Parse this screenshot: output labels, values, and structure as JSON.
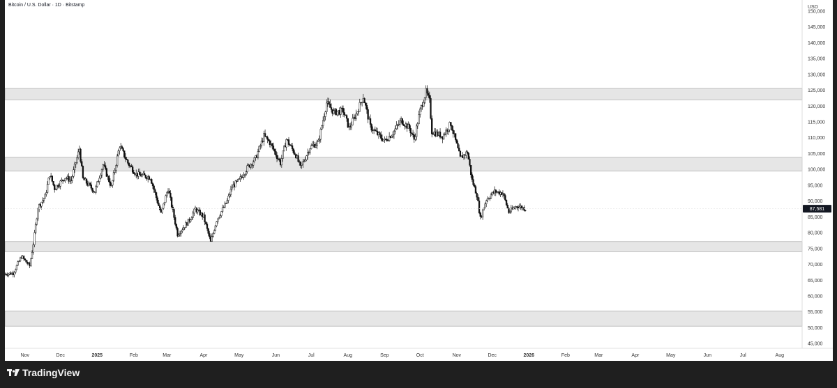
{
  "legend": {
    "symbol_line": "Bitcoin / U.S. Dollar · 1D · Bitstamp"
  },
  "branding": {
    "name": "TradingView",
    "logo_icon": "tradingview-logo-icon"
  },
  "price_axis": {
    "currency": "USD"
  },
  "chart_data": {
    "type": "candlestick",
    "title": "Bitcoin / U.S. Dollar · 1D · Bitstamp",
    "ylim": [
      43500,
      153500
    ],
    "y_ticks": [
      45000,
      50000,
      55000,
      60000,
      65000,
      70000,
      75000,
      80000,
      85000,
      90000,
      95000,
      100000,
      105000,
      110000,
      115000,
      120000,
      125000,
      130000,
      135000,
      140000,
      145000,
      150000
    ],
    "y_tick_labels": [
      "45,000",
      "50,000",
      "55,000",
      "60,000",
      "65,000",
      "70,000",
      "75,000",
      "80,000",
      "85,000",
      "90,000",
      "95,000",
      "100,000",
      "105,000",
      "110,000",
      "115,000",
      "120,000",
      "125,000",
      "130,000",
      "135,000",
      "140,000",
      "145,000",
      "150,000"
    ],
    "x_start_date": "2024-10-15",
    "x_end_date": "2026-08-20",
    "x_ticks": [
      {
        "label": "Nov",
        "date": "2024-11-01"
      },
      {
        "label": "Dec",
        "date": "2024-12-01"
      },
      {
        "label": "2025",
        "date": "2025-01-01",
        "bold": true
      },
      {
        "label": "Feb",
        "date": "2025-02-01"
      },
      {
        "label": "Mar",
        "date": "2025-03-01"
      },
      {
        "label": "Apr",
        "date": "2025-04-01"
      },
      {
        "label": "May",
        "date": "2025-05-01"
      },
      {
        "label": "Jun",
        "date": "2025-06-01"
      },
      {
        "label": "Jul",
        "date": "2025-07-01"
      },
      {
        "label": "Aug",
        "date": "2025-08-01"
      },
      {
        "label": "Sep",
        "date": "2025-09-01"
      },
      {
        "label": "Oct",
        "date": "2025-10-01"
      },
      {
        "label": "Nov",
        "date": "2025-11-01"
      },
      {
        "label": "Dec",
        "date": "2025-12-01"
      },
      {
        "label": "2026",
        "date": "2026-01-01",
        "bold": true
      },
      {
        "label": "Feb",
        "date": "2026-02-01"
      },
      {
        "label": "Mar",
        "date": "2026-03-01"
      },
      {
        "label": "Apr",
        "date": "2026-04-01"
      },
      {
        "label": "May",
        "date": "2026-05-01"
      },
      {
        "label": "Jun",
        "date": "2026-06-01"
      },
      {
        "label": "Jul",
        "date": "2026-07-01"
      },
      {
        "label": "Aug",
        "date": "2026-08-01"
      }
    ],
    "zones": [
      {
        "low": 122000,
        "high": 125600
      },
      {
        "low": 99500,
        "high": 103800
      },
      {
        "low": 74000,
        "high": 77200
      },
      {
        "low": 50500,
        "high": 55300
      }
    ],
    "close_series": [
      {
        "date": "2024-10-15",
        "price": 67000
      },
      {
        "date": "2024-10-22",
        "price": 67200
      },
      {
        "date": "2024-10-29",
        "price": 72500
      },
      {
        "date": "2024-11-05",
        "price": 69500
      },
      {
        "date": "2024-11-08",
        "price": 76500
      },
      {
        "date": "2024-11-12",
        "price": 88000
      },
      {
        "date": "2024-11-18",
        "price": 91500
      },
      {
        "date": "2024-11-22",
        "price": 98500
      },
      {
        "date": "2024-11-26",
        "price": 94000
      },
      {
        "date": "2024-12-05",
        "price": 97500
      },
      {
        "date": "2024-12-10",
        "price": 96500
      },
      {
        "date": "2024-12-17",
        "price": 106500
      },
      {
        "date": "2024-12-20",
        "price": 97000
      },
      {
        "date": "2024-12-30",
        "price": 93000
      },
      {
        "date": "2025-01-06",
        "price": 101500
      },
      {
        "date": "2025-01-13",
        "price": 94500
      },
      {
        "date": "2025-01-20",
        "price": 107500
      },
      {
        "date": "2025-01-27",
        "price": 102000
      },
      {
        "date": "2025-02-03",
        "price": 98500
      },
      {
        "date": "2025-02-15",
        "price": 97500
      },
      {
        "date": "2025-02-24",
        "price": 86000
      },
      {
        "date": "2025-03-02",
        "price": 94000
      },
      {
        "date": "2025-03-10",
        "price": 79500
      },
      {
        "date": "2025-03-20",
        "price": 84000
      },
      {
        "date": "2025-03-25",
        "price": 87500
      },
      {
        "date": "2025-04-01",
        "price": 85000
      },
      {
        "date": "2025-04-07",
        "price": 77000
      },
      {
        "date": "2025-04-12",
        "price": 84000
      },
      {
        "date": "2025-04-21",
        "price": 90000
      },
      {
        "date": "2025-04-25",
        "price": 94500
      },
      {
        "date": "2025-05-01",
        "price": 96500
      },
      {
        "date": "2025-05-08",
        "price": 100500
      },
      {
        "date": "2025-05-15",
        "price": 103500
      },
      {
        "date": "2025-05-22",
        "price": 110500
      },
      {
        "date": "2025-05-27",
        "price": 108500
      },
      {
        "date": "2025-06-05",
        "price": 102000
      },
      {
        "date": "2025-06-10",
        "price": 109500
      },
      {
        "date": "2025-06-18",
        "price": 104500
      },
      {
        "date": "2025-06-22",
        "price": 100500
      },
      {
        "date": "2025-06-30",
        "price": 107000
      },
      {
        "date": "2025-07-07",
        "price": 108500
      },
      {
        "date": "2025-07-14",
        "price": 121000
      },
      {
        "date": "2025-07-20",
        "price": 118000
      },
      {
        "date": "2025-07-28",
        "price": 118500
      },
      {
        "date": "2025-08-02",
        "price": 113000
      },
      {
        "date": "2025-08-08",
        "price": 117500
      },
      {
        "date": "2025-08-14",
        "price": 123000
      },
      {
        "date": "2025-08-20",
        "price": 113500
      },
      {
        "date": "2025-08-25",
        "price": 111500
      },
      {
        "date": "2025-09-01",
        "price": 109000
      },
      {
        "date": "2025-09-08",
        "price": 111500
      },
      {
        "date": "2025-09-15",
        "price": 115500
      },
      {
        "date": "2025-09-22",
        "price": 113000
      },
      {
        "date": "2025-09-26",
        "price": 109500
      },
      {
        "date": "2025-10-01",
        "price": 118500
      },
      {
        "date": "2025-10-06",
        "price": 124500
      },
      {
        "date": "2025-10-09",
        "price": 121500
      },
      {
        "date": "2025-10-11",
        "price": 112000
      },
      {
        "date": "2025-10-20",
        "price": 110500
      },
      {
        "date": "2025-10-27",
        "price": 114500
      },
      {
        "date": "2025-11-04",
        "price": 103500
      },
      {
        "date": "2025-11-10",
        "price": 105500
      },
      {
        "date": "2025-11-14",
        "price": 96500
      },
      {
        "date": "2025-11-18",
        "price": 92000
      },
      {
        "date": "2025-11-21",
        "price": 84500
      },
      {
        "date": "2025-11-26",
        "price": 90500
      },
      {
        "date": "2025-12-03",
        "price": 93000
      },
      {
        "date": "2025-12-10",
        "price": 92500
      },
      {
        "date": "2025-12-15",
        "price": 86500
      },
      {
        "date": "2025-12-22",
        "price": 88500
      },
      {
        "date": "2025-12-29",
        "price": 87581
      }
    ],
    "last_price": 87581,
    "last_price_label": "87,581",
    "last_price_color": "#131722"
  }
}
